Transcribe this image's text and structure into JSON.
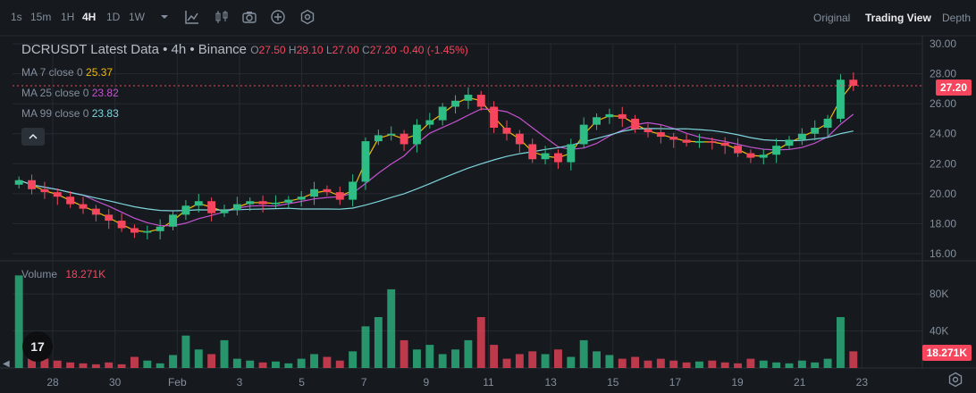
{
  "toolbar": {
    "intervals": [
      "1s",
      "15m",
      "1H",
      "4H",
      "1D",
      "1W"
    ],
    "active_interval": "4H",
    "tools": [
      "chevron-down-icon",
      "indicator-icon",
      "candle-type-icon",
      "camera-icon",
      "add-icon",
      "settings-icon"
    ],
    "views": [
      "Original",
      "Trading View",
      "Depth"
    ],
    "active_view": "Trading View"
  },
  "legend": {
    "title": "DCRUSDT Latest Data • 4h • Binance",
    "o_label": "O",
    "o_value": "27.50",
    "h_label": "H",
    "h_value": "29.10",
    "l_label": "L",
    "l_value": "27.00",
    "c_label": "C",
    "c_value": "27.20",
    "change": "-0.40 (-1.45%)",
    "ma": [
      {
        "label": "MA 7 close 0",
        "value": "25.37",
        "color": "#f0b90b"
      },
      {
        "label": "MA 25 close 0",
        "value": "23.82",
        "color": "#c453d0"
      },
      {
        "label": "MA 99 close 0",
        "value": "23.83",
        "color": "#7ed4dc"
      }
    ],
    "collapse_icon": "chevron-up-icon"
  },
  "volume_legend": {
    "label": "Volume",
    "value": "18.271K"
  },
  "logo_text": "17",
  "colors": {
    "up": "#2ebd85",
    "down": "#f6465d",
    "grid": "#262b31",
    "ma7": "#f0b90b",
    "ma25": "#c453d0",
    "ma99": "#7ed4dc"
  },
  "chart_data": [
    {
      "type": "candlestick",
      "title": "DCRUSDT Latest Data • 4h • Binance",
      "interval": "4h",
      "ylim": [
        16,
        30
      ],
      "y_ticks": [
        16,
        18,
        20,
        22,
        24,
        26,
        28,
        30
      ],
      "x_ticks": [
        "28",
        "30",
        "Feb",
        "3",
        "5",
        "7",
        "9",
        "11",
        "13",
        "15",
        "17",
        "19",
        "21",
        "23"
      ],
      "last_price": "27.20",
      "grid": true,
      "series_close": [
        20.9,
        20.3,
        20.1,
        19.8,
        19.3,
        19.0,
        18.6,
        18.2,
        17.7,
        17.4,
        17.5,
        17.8,
        18.6,
        19.2,
        19.5,
        18.7,
        18.9,
        19.3,
        19.5,
        19.3,
        19.4,
        19.6,
        19.8,
        20.3,
        20.1,
        19.6,
        20.8,
        23.5,
        23.9,
        24.0,
        23.3,
        24.6,
        24.9,
        25.8,
        26.2,
        26.6,
        25.8,
        24.4,
        24.0,
        23.3,
        22.3,
        22.7,
        22.1,
        23.3,
        24.6,
        25.1,
        25.3,
        25.0,
        24.3,
        24.1,
        23.8,
        23.6,
        23.4,
        23.5,
        23.4,
        23.2,
        22.7,
        22.4,
        22.6,
        23.2,
        23.6,
        24.0,
        24.4,
        25.0,
        27.6,
        27.2
      ],
      "ma7_last": 25.37,
      "ma25_last": 23.82,
      "ma99_last": 23.83
    },
    {
      "type": "bar",
      "title": "Volume",
      "y_ticks": [
        "40K",
        "80K"
      ],
      "last_value": "18.271K",
      "values": [
        100,
        20,
        10,
        8,
        6,
        5,
        4,
        6,
        4,
        12,
        8,
        5,
        14,
        35,
        20,
        15,
        30,
        10,
        8,
        6,
        7,
        5,
        10,
        15,
        12,
        8,
        18,
        45,
        55,
        85,
        30,
        20,
        25,
        15,
        20,
        30,
        55,
        25,
        10,
        15,
        18,
        15,
        20,
        12,
        30,
        18,
        14,
        10,
        12,
        8,
        10,
        8,
        6,
        7,
        8,
        6,
        5,
        10,
        8,
        6,
        5,
        8,
        6,
        10,
        55,
        18
      ]
    }
  ]
}
